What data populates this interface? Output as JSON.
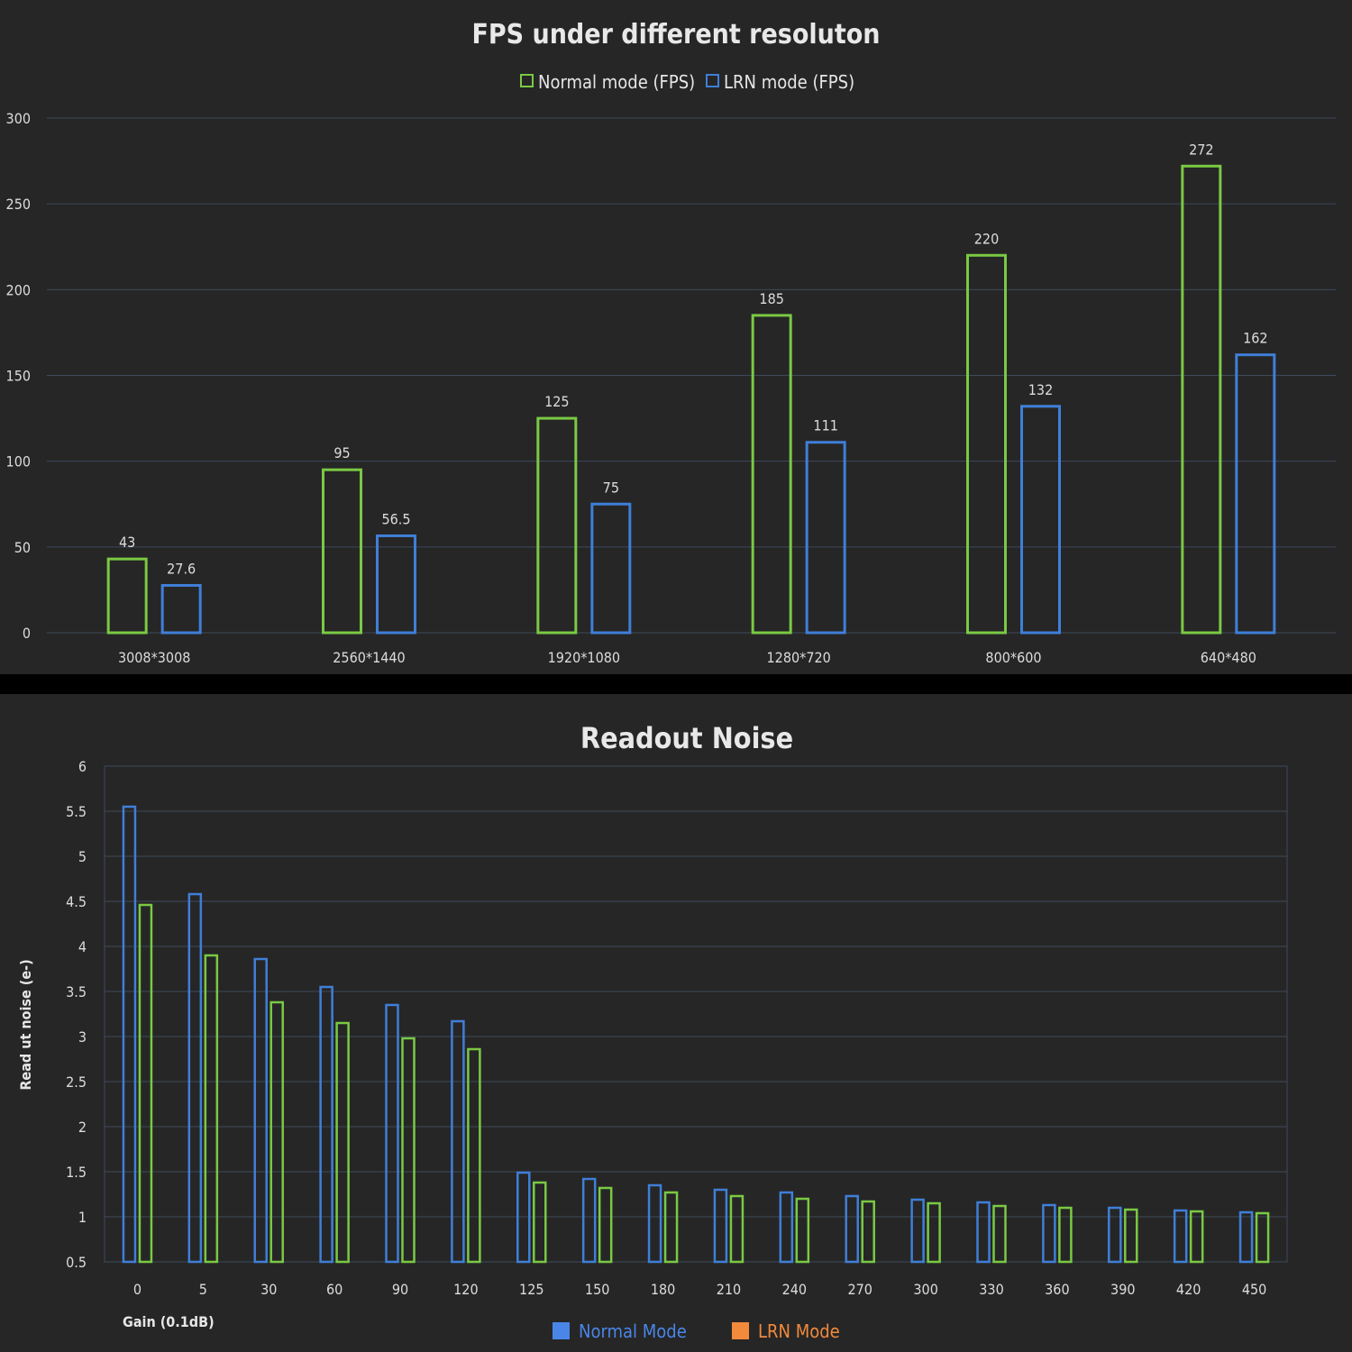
{
  "chart_data": [
    {
      "type": "bar",
      "title": "FPS under different resoluton",
      "xlabel": "",
      "ylabel": "",
      "categories": [
        "3008*3008",
        "2560*1440",
        "1920*1080",
        "1280*720",
        "800*600",
        "640*480"
      ],
      "series": [
        {
          "name": "Normal mode (FPS)",
          "values": [
            43,
            95,
            125,
            185,
            220,
            272
          ],
          "color": "#7ac943"
        },
        {
          "name": "LRN mode (FPS)",
          "values": [
            27.6,
            56.5,
            75,
            111,
            132,
            162
          ],
          "color": "#3f7fd8"
        }
      ],
      "ylim": [
        0,
        300
      ],
      "yticks": [
        0,
        50,
        100,
        150,
        200,
        250,
        300
      ],
      "grid": true,
      "legend": "top-center"
    },
    {
      "type": "bar",
      "title": "Readout Noise",
      "xlabel": "Gain (0.1dB)",
      "ylabel": "Read ut noise (e-)",
      "categories": [
        "0",
        "5",
        "30",
        "60",
        "90",
        "120",
        "125",
        "150",
        "180",
        "210",
        "240",
        "270",
        "300",
        "330",
        "360",
        "390",
        "420",
        "450"
      ],
      "series": [
        {
          "name": "Normal Mode",
          "values": [
            5.55,
            4.58,
            3.86,
            3.55,
            3.35,
            3.17,
            1.49,
            1.42,
            1.35,
            1.3,
            1.27,
            1.23,
            1.19,
            1.16,
            1.13,
            1.1,
            1.07,
            1.05
          ],
          "color": "#3f7fd8",
          "legend_color": "#4a86e8"
        },
        {
          "name": "LRN Mode",
          "values": [
            4.46,
            3.9,
            3.38,
            3.15,
            2.98,
            2.86,
            1.38,
            1.32,
            1.27,
            1.23,
            1.2,
            1.17,
            1.15,
            1.12,
            1.1,
            1.08,
            1.06,
            1.04
          ],
          "color": "#7ac943",
          "legend_color": "#f28a3c"
        }
      ],
      "ylim": [
        0.5,
        6
      ],
      "yticks": [
        0.5,
        1,
        1.5,
        2,
        2.5,
        3,
        3.5,
        4,
        4.5,
        5,
        5.5,
        6
      ],
      "grid": true,
      "legend": "bottom-center"
    }
  ]
}
